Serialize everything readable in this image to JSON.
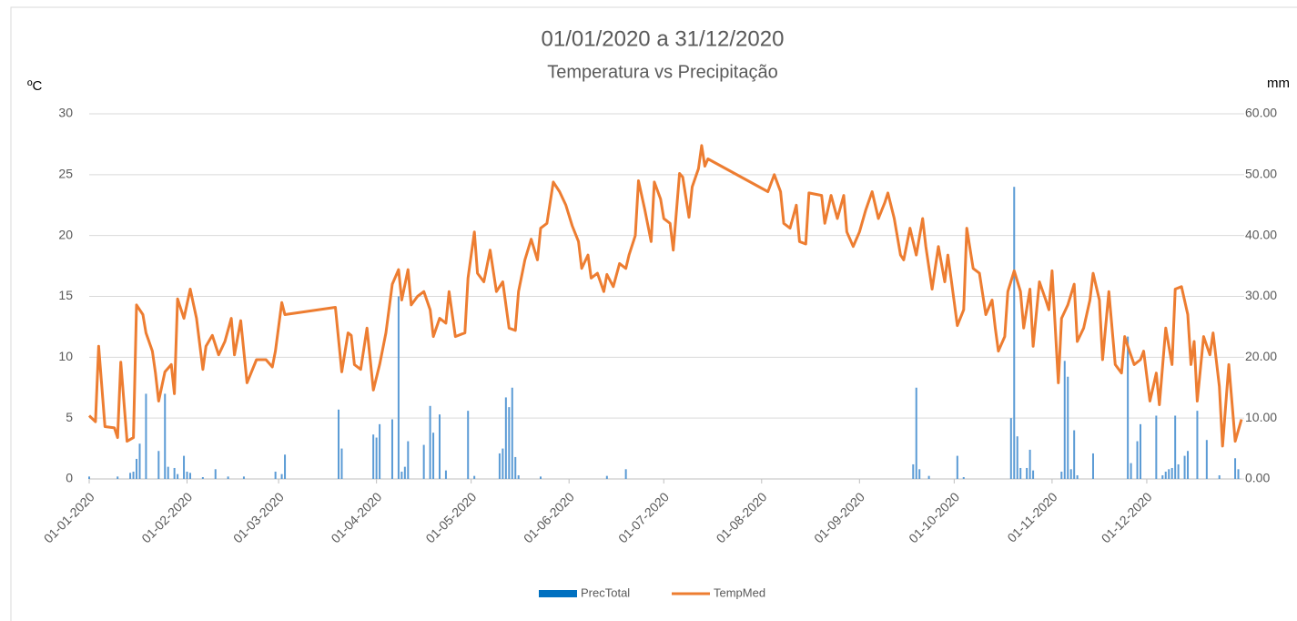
{
  "chart_data": {
    "type": "combo",
    "title": "01/01/2020 a 31/12/2020",
    "subtitle": "Temperatura vs Precipitação",
    "y_label": "ºC",
    "y2_label": "mm",
    "xlim": [
      "01-01-2020",
      "31-12-2020"
    ],
    "xticks": [
      "01-01-2020",
      "01-02-2020",
      "01-03-2020",
      "01-04-2020",
      "01-05-2020",
      "01-06-2020",
      "01-07-2020",
      "01-08-2020",
      "01-09-2020",
      "01-10-2020",
      "01-11-2020",
      "01-12-2020"
    ],
    "ylim": [
      0,
      30
    ],
    "yticks": [
      0,
      5,
      10,
      15,
      20,
      25,
      30
    ],
    "y2lim": [
      0,
      60
    ],
    "y2ticks": [
      {
        "value": 0,
        "label": "0.00"
      },
      {
        "value": 10,
        "label": "10.00"
      },
      {
        "value": 20,
        "label": "20.00"
      },
      {
        "value": 30,
        "label": "30.00"
      },
      {
        "value": 40,
        "label": "40.00"
      },
      {
        "value": 50,
        "label": "50.00"
      },
      {
        "value": 60,
        "label": "60.00"
      }
    ],
    "grid": true,
    "legend": "bottom",
    "series": [
      {
        "name": "PrecTotal",
        "type": "bar",
        "axis": "y2",
        "color": "#5b9bd5",
        "legend_color": "#0070c0",
        "x": [
          "01-01-2020",
          "10-01-2020",
          "14-01-2020",
          "15-01-2020",
          "16-01-2020",
          "17-01-2020",
          "19-01-2020",
          "23-01-2020",
          "25-01-2020",
          "26-01-2020",
          "28-01-2020",
          "29-01-2020",
          "31-01-2020",
          "01-02-2020",
          "02-02-2020",
          "06-02-2020",
          "10-02-2020",
          "14-02-2020",
          "19-02-2020",
          "29-02-2020",
          "02-03-2020",
          "03-03-2020",
          "20-03-2020",
          "21-03-2020",
          "31-03-2020",
          "01-04-2020",
          "02-04-2020",
          "06-04-2020",
          "08-04-2020",
          "09-04-2020",
          "10-04-2020",
          "11-04-2020",
          "16-04-2020",
          "18-04-2020",
          "19-04-2020",
          "21-04-2020",
          "23-04-2020",
          "30-04-2020",
          "02-05-2020",
          "10-05-2020",
          "11-05-2020",
          "12-05-2020",
          "13-05-2020",
          "14-05-2020",
          "15-05-2020",
          "16-05-2020",
          "23-05-2020",
          "13-06-2020",
          "19-06-2020",
          "18-09-2020",
          "19-09-2020",
          "20-09-2020",
          "23-09-2020",
          "02-10-2020",
          "04-10-2020",
          "19-10-2020",
          "20-10-2020",
          "21-10-2020",
          "22-10-2020",
          "24-10-2020",
          "25-10-2020",
          "26-10-2020",
          "04-11-2020",
          "05-11-2020",
          "06-11-2020",
          "07-11-2020",
          "08-11-2020",
          "09-11-2020",
          "14-11-2020",
          "25-11-2020",
          "26-11-2020",
          "28-11-2020",
          "29-11-2020",
          "04-12-2020",
          "06-12-2020",
          "07-12-2020",
          "08-12-2020",
          "09-12-2020",
          "10-12-2020",
          "11-12-2020",
          "13-12-2020",
          "14-12-2020",
          "17-12-2020",
          "20-12-2020",
          "24-12-2020",
          "29-12-2020",
          "30-12-2020"
        ],
        "values": [
          0.4,
          0.4,
          1.0,
          1.2,
          3.3,
          5.8,
          14,
          4.6,
          14,
          2,
          1.8,
          0.8,
          3.8,
          1.2,
          1.0,
          0.3,
          1.6,
          0.4,
          0.4,
          1.2,
          0.8,
          4.0,
          11.4,
          5.0,
          7.3,
          6.8,
          9,
          9.8,
          30,
          1.2,
          2.0,
          6.2,
          5.6,
          12,
          7.6,
          10.6,
          1.4,
          11.2,
          0.5,
          4.2,
          5.0,
          13.4,
          11.8,
          15,
          3.6,
          0.6,
          0.4,
          0.5,
          1.6,
          2.4,
          15,
          1.6,
          0.5,
          3.8,
          0.3,
          10,
          48,
          7,
          1.8,
          1.8,
          4.8,
          1.4,
          1.2,
          19.4,
          16.8,
          1.6,
          8,
          0.6,
          4.2,
          23.4,
          2.6,
          6.2,
          9,
          10.4,
          0.6,
          1.2,
          1.6,
          1.8,
          10.4,
          2.4,
          3.8,
          4.6,
          11.2,
          6.4,
          0.6,
          3.4,
          1.6
        ]
      },
      {
        "name": "TempMed",
        "type": "line",
        "axis": "y",
        "color": "#ed7d31",
        "x": [
          "01-01-2020",
          "03-01-2020",
          "04-01-2020",
          "06-01-2020",
          "09-01-2020",
          "10-01-2020",
          "11-01-2020",
          "13-01-2020",
          "15-01-2020",
          "16-01-2020",
          "18-01-2020",
          "19-01-2020",
          "21-01-2020",
          "22-01-2020",
          "23-01-2020",
          "25-01-2020",
          "27-01-2020",
          "28-01-2020",
          "29-01-2020",
          "31-01-2020",
          "02-02-2020",
          "04-02-2020",
          "06-02-2020",
          "07-02-2020",
          "09-02-2020",
          "11-02-2020",
          "13-02-2020",
          "15-02-2020",
          "16-02-2020",
          "18-02-2020",
          "20-02-2020",
          "23-02-2020",
          "26-02-2020",
          "28-02-2020",
          "29-02-2020",
          "02-03-2020",
          "03-03-2020",
          "19-03-2020",
          "21-03-2020",
          "23-03-2020",
          "24-03-2020",
          "25-03-2020",
          "27-03-2020",
          "29-03-2020",
          "31-03-2020",
          "02-04-2020",
          "04-04-2020",
          "06-04-2020",
          "08-04-2020",
          "09-04-2020",
          "11-04-2020",
          "12-04-2020",
          "14-04-2020",
          "16-04-2020",
          "18-04-2020",
          "19-04-2020",
          "21-04-2020",
          "23-04-2020",
          "24-04-2020",
          "26-04-2020",
          "29-04-2020",
          "30-04-2020",
          "02-05-2020",
          "03-05-2020",
          "05-05-2020",
          "07-05-2020",
          "09-05-2020",
          "11-05-2020",
          "13-05-2020",
          "15-05-2020",
          "16-05-2020",
          "18-05-2020",
          "20-05-2020",
          "22-05-2020",
          "23-05-2020",
          "25-05-2020",
          "27-05-2020",
          "29-05-2020",
          "31-05-2020",
          "02-06-2020",
          "04-06-2020",
          "05-06-2020",
          "07-06-2020",
          "08-06-2020",
          "10-06-2020",
          "12-06-2020",
          "13-06-2020",
          "15-06-2020",
          "17-06-2020",
          "19-06-2020",
          "20-06-2020",
          "22-06-2020",
          "23-06-2020",
          "25-06-2020",
          "27-06-2020",
          "28-06-2020",
          "30-06-2020",
          "01-07-2020",
          "03-07-2020",
          "04-07-2020",
          "06-07-2020",
          "07-07-2020",
          "09-07-2020",
          "10-07-2020",
          "12-07-2020",
          "13-07-2020",
          "14-07-2020",
          "15-07-2020",
          "03-08-2020",
          "05-08-2020",
          "07-08-2020",
          "08-08-2020",
          "10-08-2020",
          "12-08-2020",
          "13-08-2020",
          "15-08-2020",
          "16-08-2020",
          "20-08-2020",
          "21-08-2020",
          "23-08-2020",
          "25-08-2020",
          "27-08-2020",
          "28-08-2020",
          "30-08-2020",
          "01-09-2020",
          "03-09-2020",
          "05-09-2020",
          "07-09-2020",
          "09-09-2020",
          "10-09-2020",
          "12-09-2020",
          "14-09-2020",
          "15-09-2020",
          "17-09-2020",
          "19-09-2020",
          "21-09-2020",
          "22-09-2020",
          "24-09-2020",
          "26-09-2020",
          "28-09-2020",
          "29-09-2020",
          "30-09-2020",
          "02-10-2020",
          "04-10-2020",
          "05-10-2020",
          "07-10-2020",
          "09-10-2020",
          "11-10-2020",
          "13-10-2020",
          "14-10-2020",
          "15-10-2020",
          "17-10-2020",
          "18-10-2020",
          "20-10-2020",
          "22-10-2020",
          "23-10-2020",
          "25-10-2020",
          "26-10-2020",
          "28-10-2020",
          "30-10-2020",
          "31-10-2020",
          "01-11-2020",
          "03-11-2020",
          "04-11-2020",
          "06-11-2020",
          "08-11-2020",
          "09-11-2020",
          "11-11-2020",
          "13-11-2020",
          "14-11-2020",
          "16-11-2020",
          "17-11-2020",
          "19-11-2020",
          "21-11-2020",
          "23-11-2020",
          "24-11-2020",
          "25-11-2020",
          "27-11-2020",
          "29-11-2020",
          "30-11-2020",
          "02-12-2020",
          "04-12-2020",
          "05-12-2020",
          "07-12-2020",
          "09-12-2020",
          "10-12-2020",
          "12-12-2020",
          "14-12-2020",
          "15-12-2020",
          "16-12-2020",
          "17-12-2020",
          "19-12-2020",
          "21-12-2020",
          "22-12-2020",
          "24-12-2020",
          "25-12-2020",
          "27-12-2020",
          "29-12-2020",
          "31-12-2020"
        ],
        "values": [
          5.2,
          4.7,
          10.9,
          4.3,
          4.2,
          3.4,
          9.6,
          3.1,
          3.4,
          14.3,
          13.5,
          12.0,
          10.5,
          8.7,
          6.4,
          8.8,
          9.4,
          7.0,
          14.8,
          13.2,
          15.6,
          13.2,
          9.0,
          10.9,
          11.8,
          10.2,
          11.3,
          13.2,
          10.2,
          13.0,
          7.9,
          9.8,
          9.8,
          9.2,
          10.5,
          14.5,
          13.5,
          14.1,
          8.8,
          12.0,
          11.8,
          9.4,
          9.0,
          12.4,
          7.3,
          9.4,
          12.0,
          16.0,
          17.2,
          14.7,
          17.2,
          14.3,
          15.0,
          15.4,
          13.9,
          11.7,
          13.2,
          12.8,
          15.4,
          11.7,
          12.0,
          16.5,
          20.3,
          16.9,
          16.2,
          18.8,
          15.4,
          16.2,
          12.4,
          12.2,
          15.4,
          18.0,
          19.7,
          18.0,
          20.6,
          21.0,
          24.4,
          23.6,
          22.5,
          20.8,
          19.5,
          17.3,
          18.4,
          16.5,
          16.9,
          15.4,
          16.8,
          15.8,
          17.7,
          17.3,
          18.4,
          20.0,
          24.5,
          22.1,
          19.5,
          24.4,
          23.0,
          21.4,
          21.0,
          18.8,
          25.1,
          24.8,
          21.5,
          24.0,
          25.5,
          27.4,
          25.7,
          26.3,
          23.6,
          25.0,
          23.6,
          21.0,
          20.6,
          22.5,
          19.5,
          19.3,
          23.5,
          23.3,
          21.0,
          23.3,
          21.4,
          23.3,
          20.3,
          19.1,
          20.3,
          22.1,
          23.6,
          21.4,
          22.7,
          23.5,
          21.4,
          18.4,
          18.0,
          20.6,
          18.4,
          21.4,
          19.1,
          15.6,
          19.1,
          16.2,
          18.4,
          16.5,
          12.6,
          13.9,
          20.6,
          17.3,
          16.9,
          13.5,
          14.7,
          12.4,
          10.5,
          11.7,
          15.4,
          17.1,
          15.4,
          12.4,
          15.6,
          10.9,
          16.2,
          14.7,
          13.9,
          17.1,
          7.9,
          13.2,
          14.3,
          16.0,
          11.3,
          12.4,
          14.7,
          16.9,
          14.7,
          9.8,
          15.4,
          9.4,
          8.7,
          11.7,
          10.9,
          9.4,
          9.8,
          10.5,
          6.4,
          8.7,
          6.1,
          12.4,
          9.4,
          15.6,
          15.8,
          13.5,
          9.4,
          11.3,
          6.4,
          11.7,
          10.2,
          12.0,
          7.6,
          2.7,
          9.4,
          3.1,
          4.9
        ]
      }
    ]
  }
}
